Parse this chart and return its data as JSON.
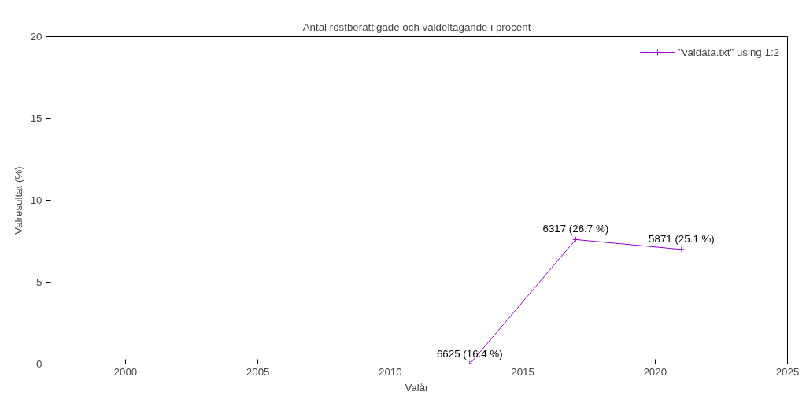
{
  "chart_data": {
    "type": "line",
    "title": "Antal röstberättigade och valdeltagande i procent",
    "xlabel": "Valår",
    "ylabel": "Valresultat (%)",
    "x": [
      2013,
      2017,
      2021
    ],
    "series": [
      {
        "name": "\"valdata.txt\" using 1:2",
        "color": "#9400d3",
        "values": [
          0,
          7.6,
          7.0
        ]
      }
    ],
    "xlim": [
      1997,
      2025
    ],
    "xticks": [
      2000,
      2005,
      2010,
      2015,
      2020,
      2025
    ],
    "ylim": [
      0,
      20
    ],
    "yticks": [
      0,
      5,
      10,
      15,
      20
    ],
    "annotations": [
      {
        "text": "6625 (16.4 %)",
        "x": 2013,
        "y": 0
      },
      {
        "text": "6317 (26.7 %)",
        "x": 2017,
        "y": 7.6
      },
      {
        "text": "5871 (25.1 %)",
        "x": 2021,
        "y": 7.0
      }
    ],
    "grid": false,
    "legend": "top right",
    "marker": "cross",
    "line_style": "solid"
  }
}
